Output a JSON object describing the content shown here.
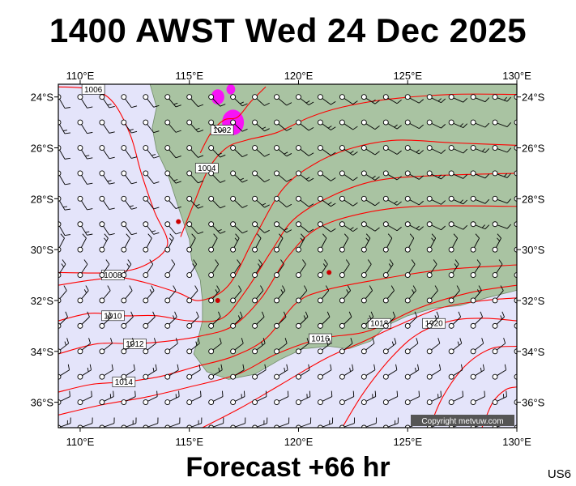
{
  "title": "1400 AWST Wed 24 Dec 2025",
  "footer": "Forecast +66 hr",
  "code": "US6",
  "copyright": "Copyright metvuw.com",
  "map": {
    "lon_range": [
      109,
      130
    ],
    "lat_range": [
      -37,
      -23.5
    ],
    "lon_ticks": [
      {
        "value": 110,
        "label": "110°E"
      },
      {
        "value": 115,
        "label": "115°E"
      },
      {
        "value": 120,
        "label": "120°E"
      },
      {
        "value": 125,
        "label": "125°E"
      },
      {
        "value": 130,
        "label": "130°E"
      }
    ],
    "lat_ticks": [
      {
        "value": -24,
        "label": "24°S"
      },
      {
        "value": -26,
        "label": "26°S"
      },
      {
        "value": -28,
        "label": "28°S"
      },
      {
        "value": -30,
        "label": "30°S"
      },
      {
        "value": -32,
        "label": "32°S"
      },
      {
        "value": -34,
        "label": "34°S"
      },
      {
        "value": -36,
        "label": "36°S"
      }
    ],
    "colors": {
      "sea": "#e4e4fa",
      "land": "#a9c3a2",
      "isobar": "#ff0000",
      "barb": "#000000",
      "rain": "#ff00ff"
    },
    "coastline": [
      [
        113.2,
        -23.5
      ],
      [
        113.5,
        -24.4
      ],
      [
        113.3,
        -25.2
      ],
      [
        113.5,
        -26.1
      ],
      [
        114.0,
        -27.0
      ],
      [
        114.3,
        -27.8
      ],
      [
        114.6,
        -28.6
      ],
      [
        115.0,
        -29.6
      ],
      [
        115.1,
        -30.4
      ],
      [
        115.5,
        -31.2
      ],
      [
        115.6,
        -32.0
      ],
      [
        115.6,
        -32.8
      ],
      [
        115.4,
        -33.5
      ],
      [
        115.2,
        -34.1
      ],
      [
        115.8,
        -34.8
      ],
      [
        116.8,
        -35.1
      ],
      [
        118.0,
        -34.9
      ],
      [
        119.2,
        -34.3
      ],
      [
        120.2,
        -33.9
      ],
      [
        121.4,
        -33.8
      ],
      [
        122.3,
        -33.9
      ],
      [
        123.3,
        -33.6
      ],
      [
        124.0,
        -33.0
      ],
      [
        125.0,
        -32.6
      ],
      [
        126.2,
        -32.3
      ],
      [
        127.4,
        -32.2
      ],
      [
        128.6,
        -31.9
      ],
      [
        130.0,
        -31.6
      ],
      [
        130.0,
        -23.5
      ]
    ],
    "isobars": [
      {
        "label": "1006",
        "label_lon": 110.6,
        "label_lat": -23.7,
        "points": [
          [
            109,
            -23.6
          ],
          [
            110.5,
            -23.7
          ],
          [
            111.5,
            -24.2
          ],
          [
            112.3,
            -25.5
          ],
          [
            112.8,
            -27.0
          ],
          [
            113.4,
            -28.5
          ],
          [
            114.0,
            -29.8
          ],
          [
            113.0,
            -30.6
          ],
          [
            111.5,
            -30.9
          ],
          [
            109,
            -30.9
          ]
        ]
      },
      {
        "label": "1008",
        "label_lon": 111.5,
        "label_lat": -31.0,
        "points": [
          [
            109,
            -31.4
          ],
          [
            110.5,
            -31.2
          ],
          [
            111.8,
            -31.1
          ],
          [
            113.0,
            -31.3
          ],
          [
            114.5,
            -31.7
          ],
          [
            115.5,
            -32.0
          ],
          [
            116.8,
            -31.4
          ],
          [
            118.0,
            -29.5
          ],
          [
            119.3,
            -27.6
          ],
          [
            120.8,
            -26.6
          ],
          [
            122.5,
            -26.0
          ],
          [
            124.5,
            -25.7
          ],
          [
            127.0,
            -25.8
          ],
          [
            130,
            -25.9
          ]
        ]
      },
      {
        "label": "1010",
        "label_lon": 111.5,
        "label_lat": -32.6,
        "points": [
          [
            109,
            -32.8
          ],
          [
            110.5,
            -32.5
          ],
          [
            112.0,
            -32.6
          ],
          [
            113.5,
            -32.6
          ],
          [
            115.0,
            -32.8
          ],
          [
            116.5,
            -32.7
          ],
          [
            117.6,
            -31.6
          ],
          [
            118.8,
            -30.0
          ],
          [
            119.8,
            -28.8
          ],
          [
            121.5,
            -27.9
          ],
          [
            123.5,
            -27.3
          ],
          [
            126.0,
            -27.1
          ],
          [
            130,
            -27.0
          ]
        ]
      },
      {
        "label": "1012",
        "label_lon": 112.5,
        "label_lat": -33.7,
        "points": [
          [
            109,
            -34.1
          ],
          [
            110.8,
            -33.7
          ],
          [
            112.5,
            -33.7
          ],
          [
            114.0,
            -33.6
          ],
          [
            115.5,
            -33.4
          ],
          [
            117.0,
            -33.0
          ],
          [
            118.3,
            -31.9
          ],
          [
            119.5,
            -30.3
          ],
          [
            120.8,
            -29.2
          ],
          [
            122.8,
            -28.6
          ],
          [
            125.5,
            -28.3
          ],
          [
            130,
            -28.3
          ]
        ]
      },
      {
        "label": "1014",
        "label_lon": 112.0,
        "label_lat": -35.2,
        "points": [
          [
            109,
            -35.6
          ],
          [
            110.5,
            -35.3
          ],
          [
            112.0,
            -35.2
          ],
          [
            113.6,
            -35.0
          ],
          [
            115.3,
            -34.6
          ],
          [
            117.0,
            -34.2
          ],
          [
            118.5,
            -33.5
          ],
          [
            119.9,
            -32.1
          ],
          [
            121.2,
            -31.6
          ],
          [
            123.5,
            -31.2
          ],
          [
            126.5,
            -30.8
          ],
          [
            130,
            -30.6
          ]
        ]
      },
      {
        "label": "1016",
        "label_lon": 121.0,
        "label_lat": -33.5,
        "points": [
          [
            109,
            -36.5
          ],
          [
            111.0,
            -36.1
          ],
          [
            113.0,
            -35.8
          ],
          [
            115.0,
            -35.4
          ],
          [
            117.2,
            -34.9
          ],
          [
            119.0,
            -34.1
          ],
          [
            121.0,
            -33.5
          ],
          [
            123.2,
            -33.2
          ],
          [
            125.5,
            -32.3
          ],
          [
            127.8,
            -31.7
          ],
          [
            130,
            -31.4
          ]
        ]
      },
      {
        "label": "1018",
        "label_lon": 123.7,
        "label_lat": -32.9,
        "points": [
          [
            115.6,
            -37
          ],
          [
            117.4,
            -36.2
          ],
          [
            119.2,
            -35.3
          ],
          [
            121.2,
            -34.3
          ],
          [
            123.0,
            -33.6
          ],
          [
            124.5,
            -33.0
          ],
          [
            126.5,
            -32.3
          ],
          [
            128.5,
            -32.0
          ],
          [
            130,
            -31.9
          ]
        ]
      },
      {
        "label": "1020",
        "label_lon": 126.2,
        "label_lat": -32.9,
        "points": [
          [
            122.0,
            -37
          ],
          [
            123.0,
            -35.6
          ],
          [
            124.3,
            -34.2
          ],
          [
            125.5,
            -33.3
          ],
          [
            127.0,
            -32.8
          ],
          [
            128.5,
            -32.7
          ],
          [
            130,
            -32.8
          ]
        ]
      },
      {
        "label": "",
        "label_lon": 0,
        "label_lat": 0,
        "points": [
          [
            126.0,
            -37
          ],
          [
            126.6,
            -35.8
          ],
          [
            127.6,
            -34.6
          ],
          [
            128.8,
            -33.9
          ],
          [
            130,
            -33.8
          ]
        ]
      },
      {
        "label": "",
        "label_lon": 0,
        "label_lat": 0,
        "points": [
          [
            128.4,
            -37
          ],
          [
            128.9,
            -36.0
          ],
          [
            129.5,
            -35.5
          ],
          [
            130,
            -35.4
          ]
        ]
      },
      {
        "label": "1004",
        "label_lon": 115.8,
        "label_lat": -26.8,
        "points": [
          [
            114.6,
            -29.5
          ],
          [
            115.2,
            -28.2
          ],
          [
            115.9,
            -26.8
          ],
          [
            116.7,
            -26.0
          ],
          [
            117.6,
            -25.7
          ],
          [
            119.0,
            -25.4
          ],
          [
            120.5,
            -24.8
          ],
          [
            122.0,
            -24.4
          ],
          [
            124.0,
            -24.1
          ],
          [
            127.0,
            -23.9
          ],
          [
            130,
            -23.9
          ]
        ]
      },
      {
        "label": "1002",
        "label_lon": 116.5,
        "label_lat": -25.3,
        "points": [
          [
            115.5,
            -26.2
          ],
          [
            116.0,
            -25.4
          ],
          [
            116.6,
            -24.9
          ],
          [
            117.2,
            -24.8
          ],
          [
            117.8,
            -24.2
          ],
          [
            118.5,
            -23.6
          ]
        ]
      }
    ],
    "rain_cells": [
      {
        "lon": 117.0,
        "lat": -25.0,
        "r": 0.5
      },
      {
        "lon": 116.3,
        "lat": -24.0,
        "r": 0.3
      },
      {
        "lon": 116.9,
        "lat": -23.7,
        "r": 0.2
      }
    ],
    "lows": [
      {
        "lon": 116.3,
        "lat": -32.0
      },
      {
        "lon": 121.4,
        "lat": -30.9
      },
      {
        "lon": 114.5,
        "lat": -28.9
      }
    ],
    "barb_grid": {
      "lon_start": 109,
      "lon_step": 1,
      "lon_count": 22,
      "lat_start": -37,
      "lat_step": 1,
      "lat_count": 14
    }
  }
}
